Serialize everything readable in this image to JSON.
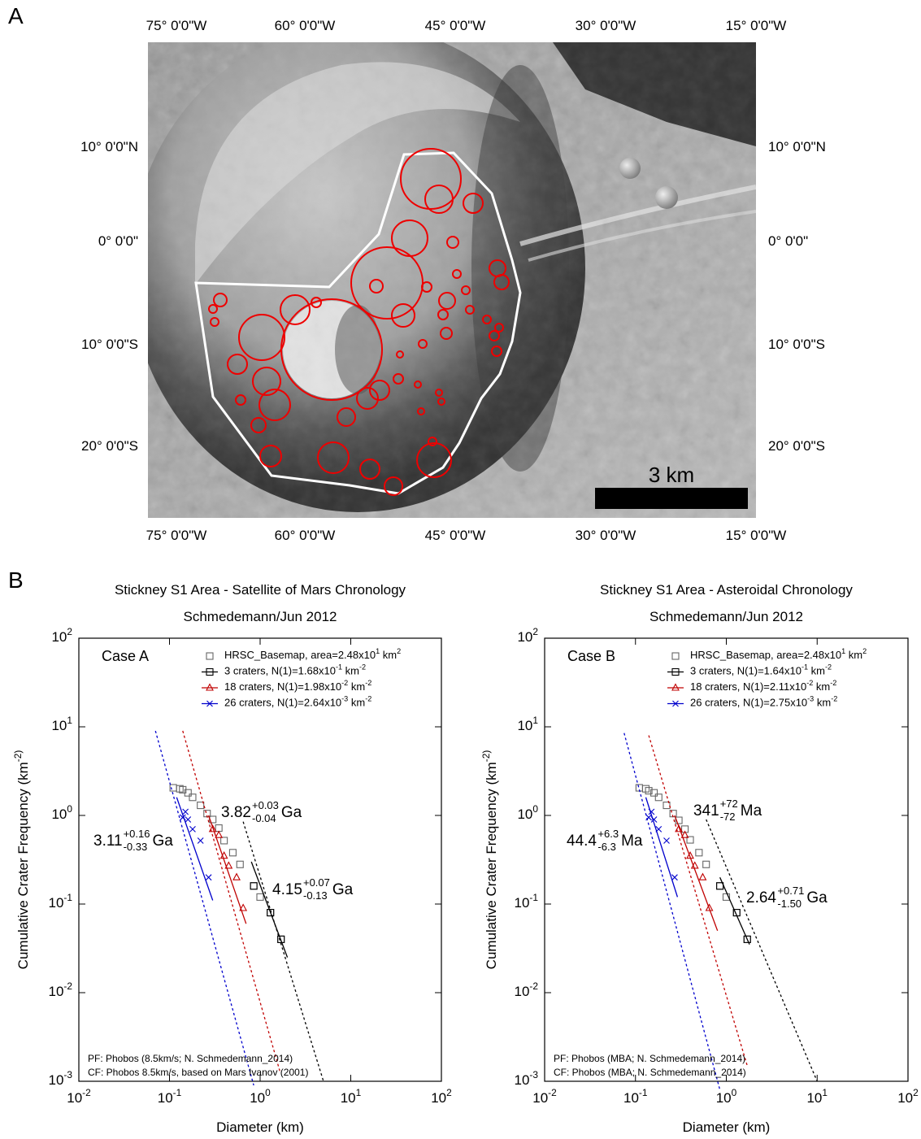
{
  "panel_labels": [
    "A",
    "B"
  ],
  "map": {
    "x_labels": [
      "75° 0'0\"W",
      "60° 0'0\"W",
      "45° 0'0\"W",
      "30° 0'0\"W",
      "15° 0'0\"W"
    ],
    "y_labels": [
      "10° 0'0\"N",
      "0° 0'0\"",
      "10° 0'0\"S",
      "20° 0'0\"S"
    ],
    "scale_bar": "3 km"
  },
  "chart_data": [
    {
      "type": "scatter",
      "title": "Stickney S1 Area - Satellite of Mars Chronology",
      "subtitle": "Schmedemann/Jun 2012",
      "case_label": "Case A",
      "xlabel": "Diameter (km)",
      "ylabel": "Cumulative Crater Frequency (km^-2)",
      "xscale": "log",
      "yscale": "log",
      "xlim": [
        0.01,
        100
      ],
      "ylim": [
        0.001,
        100
      ],
      "xticks": [
        {
          "value": 0.01,
          "label": "10^-2"
        },
        {
          "value": 0.1,
          "label": "10^-1"
        },
        {
          "value": 1,
          "label": "10^0"
        },
        {
          "value": 10,
          "label": "10^1"
        },
        {
          "value": 100,
          "label": "10^2"
        }
      ],
      "yticks": [
        {
          "value": 0.001,
          "label": "10^-3"
        },
        {
          "value": 0.01,
          "label": "10^-2"
        },
        {
          "value": 0.1,
          "label": "10^-1"
        },
        {
          "value": 1,
          "label": "10^0"
        },
        {
          "value": 10,
          "label": "10^1"
        },
        {
          "value": 100,
          "label": "10^2"
        }
      ],
      "series": [
        {
          "name": "HRSC_Basemap, area=2.48x10^1 km^2",
          "marker": "square",
          "color": "#666666",
          "x": [
            0.11,
            0.13,
            0.14,
            0.16,
            0.18,
            0.22,
            0.26,
            0.3,
            0.35,
            0.4,
            0.5,
            0.6,
            0.85,
            1.0,
            1.3,
            1.7
          ],
          "values": [
            2.05,
            2.0,
            1.95,
            1.8,
            1.6,
            1.3,
            1.05,
            0.9,
            0.72,
            0.52,
            0.38,
            0.28,
            0.16,
            0.12,
            0.08,
            0.04
          ]
        },
        {
          "name": "3 craters, N(1)=1.68x10^-1 km^-2",
          "marker": "square",
          "color": "#000000",
          "x": [
            0.85,
            1.3,
            1.7
          ],
          "values": [
            0.16,
            0.08,
            0.04
          ],
          "fit": {
            "x": [
              0.8,
              2.0
            ],
            "values": [
              0.3,
              0.025
            ]
          },
          "extrapolation": {
            "x": [
              0.65,
              5.0
            ],
            "values": [
              0.85,
              0.001
            ]
          }
        },
        {
          "name": "18 craters, N(1)=1.98x10^-2 km^-2",
          "marker": "triangle",
          "color": "#c00000",
          "x": [
            0.3,
            0.35,
            0.4,
            0.45,
            0.55,
            0.65
          ],
          "values": [
            0.7,
            0.6,
            0.35,
            0.27,
            0.2,
            0.09
          ],
          "fit": {
            "x": [
              0.27,
              0.7
            ],
            "values": [
              1.0,
              0.06
            ]
          },
          "extrapolation": {
            "x": [
              0.14,
              1.65
            ],
            "values": [
              9.0,
              0.0013
            ]
          }
        },
        {
          "name": "26 craters, N(1)=2.64x10^-3 km^-2",
          "marker": "cross",
          "color": "#0000cc",
          "x": [
            0.15,
            0.14,
            0.16,
            0.18,
            0.22,
            0.27
          ],
          "values": [
            1.1,
            0.95,
            0.9,
            0.7,
            0.52,
            0.2
          ],
          "fit": {
            "x": [
              0.12,
              0.3
            ],
            "values": [
              1.6,
              0.11
            ]
          },
          "extrapolation": {
            "x": [
              0.07,
              0.85
            ],
            "values": [
              9.0,
              0.0009
            ]
          }
        }
      ],
      "ages": [
        {
          "value": "3.11",
          "upper": "+0.16",
          "lower": "-0.33",
          "unit": "Ga",
          "color": "#0000cc"
        },
        {
          "value": "3.82",
          "upper": "+0.03",
          "lower": "-0.04",
          "unit": "Ga",
          "color": "#aa0000"
        },
        {
          "value": "4.15",
          "upper": "+0.07",
          "lower": "-0.13",
          "unit": "Ga",
          "color": "#000000"
        }
      ],
      "notes": [
        "PF: Phobos (8.5km/s; N. Schmedemann_2014)",
        "CF: Phobos 8.5km/s, based on Mars Ivanov (2001)"
      ]
    },
    {
      "type": "scatter",
      "title": "Stickney S1 Area - Asteroidal Chronology",
      "subtitle": "Schmedemann/Jun 2012",
      "case_label": "Case B",
      "xlabel": "Diameter (km)",
      "ylabel": "Cumulative Crater Frequency (km^-2)",
      "xscale": "log",
      "yscale": "log",
      "xlim": [
        0.01,
        100
      ],
      "ylim": [
        0.001,
        100
      ],
      "xticks": [
        {
          "value": 0.01,
          "label": "10^-2"
        },
        {
          "value": 0.1,
          "label": "10^-1"
        },
        {
          "value": 1,
          "label": "10^0"
        },
        {
          "value": 10,
          "label": "10^1"
        },
        {
          "value": 100,
          "label": "10^2"
        }
      ],
      "yticks": [
        {
          "value": 0.001,
          "label": "10^-3"
        },
        {
          "value": 0.01,
          "label": "10^-2"
        },
        {
          "value": 0.1,
          "label": "10^-1"
        },
        {
          "value": 1,
          "label": "10^0"
        },
        {
          "value": 10,
          "label": "10^1"
        },
        {
          "value": 100,
          "label": "10^2"
        }
      ],
      "series": [
        {
          "name": "HRSC_Basemap, area=2.48x10^1 km^2",
          "marker": "square",
          "color": "#666666",
          "x": [
            0.11,
            0.13,
            0.14,
            0.16,
            0.18,
            0.22,
            0.26,
            0.3,
            0.35,
            0.4,
            0.5,
            0.6,
            0.85,
            1.0,
            1.3,
            1.7
          ],
          "values": [
            2.05,
            2.0,
            1.9,
            1.8,
            1.6,
            1.3,
            1.05,
            0.88,
            0.7,
            0.53,
            0.38,
            0.28,
            0.16,
            0.12,
            0.08,
            0.04
          ]
        },
        {
          "name": "3 craters, N(1)=1.64x10^-1 km^-2",
          "marker": "square",
          "color": "#000000",
          "x": [
            0.85,
            1.3,
            1.7
          ],
          "values": [
            0.16,
            0.08,
            0.04
          ],
          "fit": {
            "x": [
              0.85,
              1.8
            ],
            "values": [
              0.2,
              0.035
            ]
          },
          "extrapolation": {
            "x": [
              0.6,
              10.0
            ],
            "values": [
              0.9,
              0.001
            ]
          }
        },
        {
          "name": "18 craters, N(1)=2.11x10^-2 km^-2",
          "marker": "triangle",
          "color": "#c00000",
          "x": [
            0.3,
            0.35,
            0.4,
            0.45,
            0.55,
            0.65
          ],
          "values": [
            0.7,
            0.6,
            0.35,
            0.27,
            0.2,
            0.09
          ],
          "fit": {
            "x": [
              0.27,
              0.8
            ],
            "values": [
              1.0,
              0.05
            ]
          },
          "extrapolation": {
            "x": [
              0.14,
              1.7
            ],
            "values": [
              8.0,
              0.0015
            ]
          }
        },
        {
          "name": "26 craters, N(1)=2.75x10^-3 km^-2",
          "marker": "cross",
          "color": "#0000cc",
          "x": [
            0.15,
            0.14,
            0.16,
            0.18,
            0.22,
            0.27
          ],
          "values": [
            1.1,
            0.95,
            0.9,
            0.7,
            0.52,
            0.2
          ],
          "fit": {
            "x": [
              0.13,
              0.29
            ],
            "values": [
              1.6,
              0.12
            ]
          },
          "extrapolation": {
            "x": [
              0.075,
              0.85
            ],
            "values": [
              8.5,
              0.0008
            ]
          }
        }
      ],
      "ages": [
        {
          "value": "44.4",
          "upper": "+6.3",
          "lower": "-6.3",
          "unit": "Ma",
          "color": "#0000cc"
        },
        {
          "value": "341",
          "upper": "+72",
          "lower": "-72",
          "unit": "Ma",
          "color": "#aa0000"
        },
        {
          "value": "2.64",
          "upper": "+0.71",
          "lower": "-1.50",
          "unit": "Ga",
          "color": "#000000"
        }
      ],
      "notes": [
        "PF: Phobos (MBA; N. Schmedemann_2014)",
        "CF: Phobos (MBA; N. Schmedemann_2014)"
      ]
    }
  ]
}
